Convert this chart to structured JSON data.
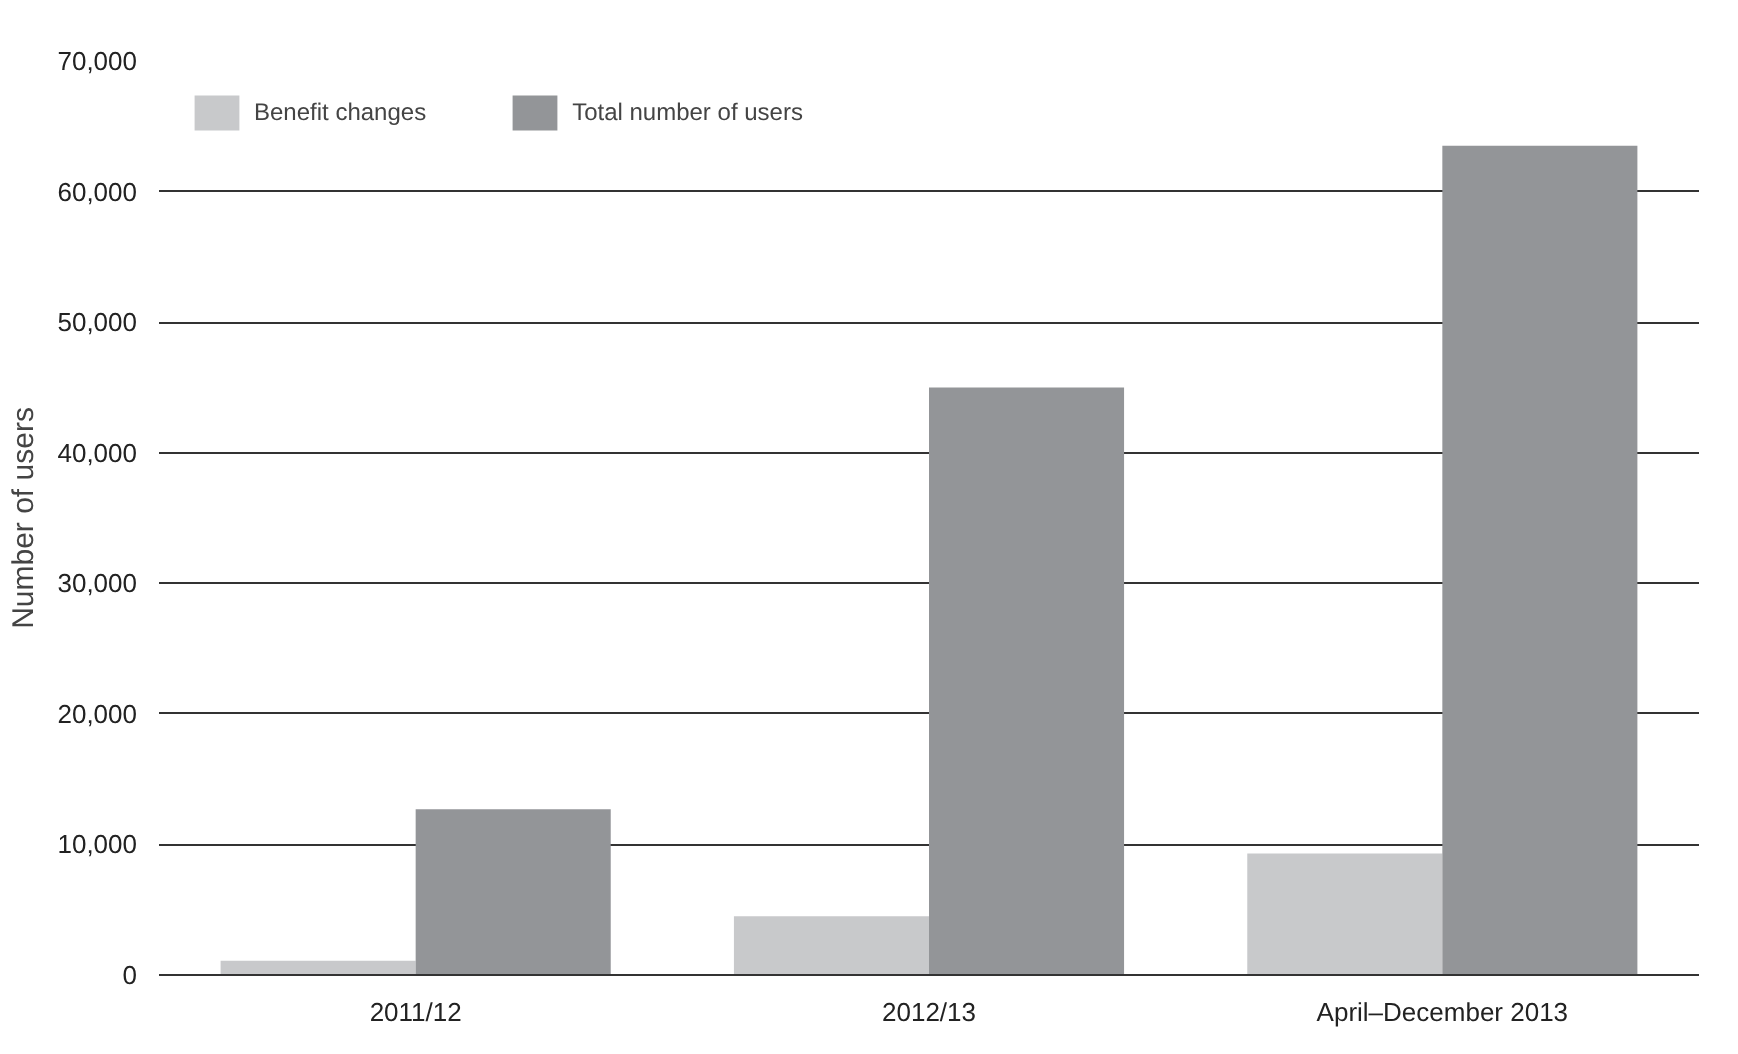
{
  "chart_data": {
    "type": "bar",
    "ylabel": "Number of users",
    "categories": [
      "2011/12",
      "2012/13",
      "April–December 2013"
    ],
    "series": [
      {
        "name": "Benefit changes",
        "color": "#c8c9cb",
        "values": [
          1100,
          4500,
          9300
        ]
      },
      {
        "name": "Total number of users",
        "color": "#939598",
        "values": [
          12700,
          45000,
          63500
        ]
      }
    ],
    "ylim": [
      0,
      70000
    ],
    "yticks": [
      0,
      {
        "value": 10000,
        "label": "10,000"
      },
      {
        "value": 20000,
        "label": "20,000"
      },
      {
        "value": 30000,
        "label": "30,000"
      },
      {
        "value": 40000,
        "label": "40,000"
      },
      {
        "value": 50000,
        "label": "50,000"
      },
      {
        "value": 60000,
        "label": "60,000"
      },
      {
        "value": 70000,
        "label": "70,000"
      }
    ],
    "grid": "y",
    "legend": "top left"
  }
}
